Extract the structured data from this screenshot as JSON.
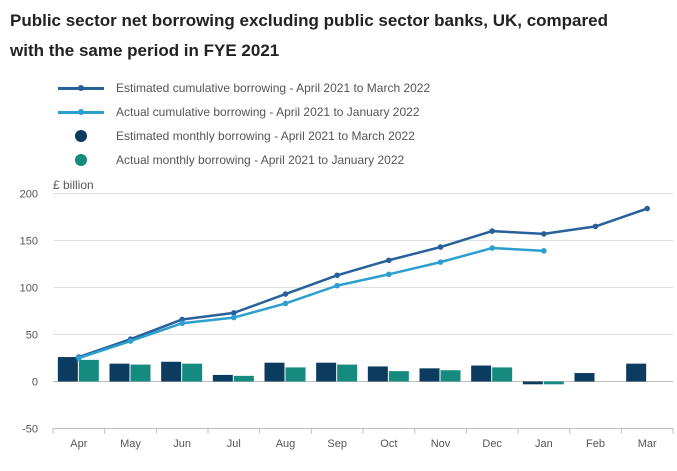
{
  "chart_data": {
    "type": "bar",
    "title_line1": "Public sector net borrowing excluding public sector banks, UK, compared",
    "title_line2": "with the same period in FYE 2021",
    "ylabel": "£ billion",
    "xlabel": "",
    "ylim": [
      -50,
      200
    ],
    "yticks": [
      200,
      150,
      100,
      50,
      0,
      -50
    ],
    "categories": [
      "Apr",
      "May",
      "Jun",
      "Jul",
      "Aug",
      "Sep",
      "Oct",
      "Nov",
      "Dec",
      "Jan",
      "Feb",
      "Mar"
    ],
    "series": [
      {
        "name": "Estimated cumulative borrowing - April 2021 to March 2022",
        "kind": "line",
        "color": "#27609a",
        "values": [
          26,
          45,
          66,
          73,
          93,
          113,
          129,
          143,
          160,
          157,
          165,
          184
        ]
      },
      {
        "name": "Actual cumulative borrowing - April 2021 to January 2022",
        "kind": "line",
        "color": "#2d9fcf",
        "values": [
          25,
          43,
          62,
          68,
          83,
          102,
          114,
          127,
          142,
          139,
          null,
          null
        ]
      },
      {
        "name": "Estimated monthly borrowing - April 2021 to March 2022",
        "kind": "bar",
        "color": "#0b3b5e",
        "values": [
          26,
          19,
          21,
          7,
          20,
          20,
          16,
          14,
          17,
          -3,
          9,
          19
        ]
      },
      {
        "name": "Actual monthly borrowing - April 2021 to January 2022",
        "kind": "bar",
        "color": "#158a7f",
        "values": [
          23,
          18,
          19,
          6,
          15,
          18,
          11,
          12,
          15,
          -3,
          null,
          null
        ]
      }
    ],
    "grid": true,
    "legend_position": "top-left"
  }
}
